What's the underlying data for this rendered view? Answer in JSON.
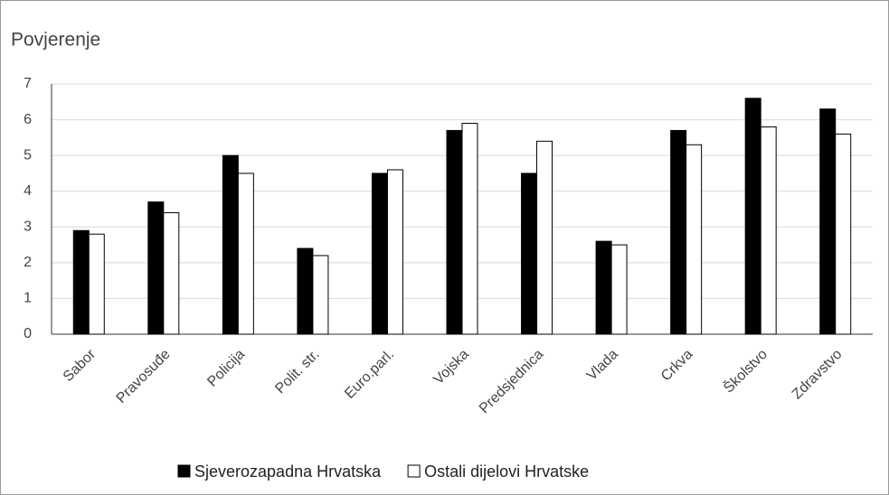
{
  "chart_data": {
    "type": "bar",
    "title": "Povjerenje",
    "categories": [
      "Sabor",
      "Pravosuđe",
      "Policija",
      "Polit. str.",
      "Euro.parl.",
      "Vojska",
      "Predsjednica",
      "Vlada",
      "Crkva",
      "Školstvo",
      "Zdravstvo"
    ],
    "series": [
      {
        "name": "Sjeverozapadna Hrvatska",
        "color": "#000000",
        "values": [
          2.9,
          3.7,
          5.0,
          2.4,
          4.5,
          5.7,
          4.5,
          2.6,
          5.7,
          6.6,
          6.3
        ]
      },
      {
        "name": "Ostali dijelovi Hrvatske",
        "color": "#ffffff",
        "values": [
          2.8,
          3.4,
          4.5,
          2.2,
          4.6,
          5.9,
          5.4,
          2.5,
          5.3,
          5.8,
          5.6
        ]
      }
    ],
    "ylim": [
      0,
      7
    ],
    "yticks": [
      0,
      1,
      2,
      3,
      4,
      5,
      6,
      7
    ],
    "grid": true,
    "legend": "bottom"
  }
}
